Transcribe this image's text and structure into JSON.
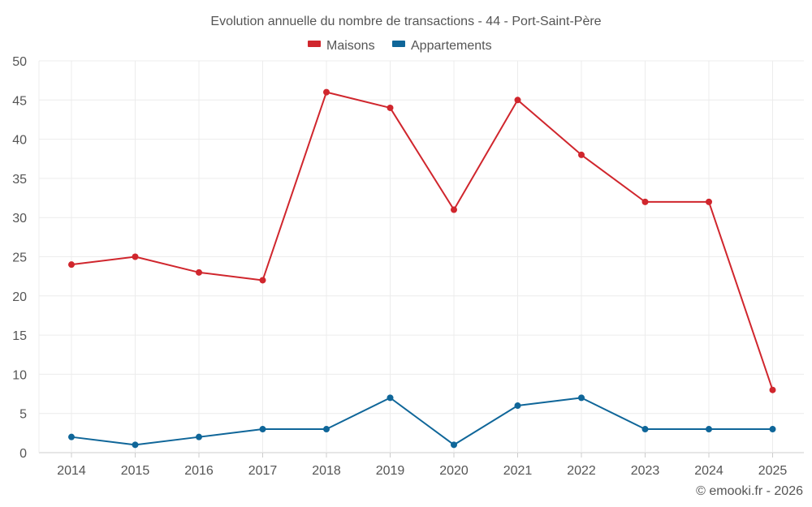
{
  "chart_data": {
    "type": "line",
    "title": "Evolution annuelle du nombre de transactions - 44 - Port-Saint-Père",
    "categories": [
      "2014",
      "2015",
      "2016",
      "2017",
      "2018",
      "2019",
      "2020",
      "2021",
      "2022",
      "2023",
      "2024",
      "2025"
    ],
    "series": [
      {
        "name": "Maisons",
        "color": "#d0262d",
        "values": [
          24,
          25,
          23,
          22,
          46,
          44,
          31,
          45,
          38,
          32,
          32,
          8
        ]
      },
      {
        "name": "Appartements",
        "color": "#0f6699",
        "values": [
          2,
          1,
          2,
          3,
          3,
          7,
          1,
          6,
          7,
          3,
          3,
          3
        ]
      }
    ],
    "yticks": [
      0,
      5,
      10,
      15,
      20,
      25,
      30,
      35,
      40,
      45,
      50
    ],
    "ylim": [
      0,
      50
    ],
    "xlabel": "",
    "ylabel": "",
    "grid": true,
    "legend": "top-center"
  },
  "credit": "© emooki.fr - 2026"
}
